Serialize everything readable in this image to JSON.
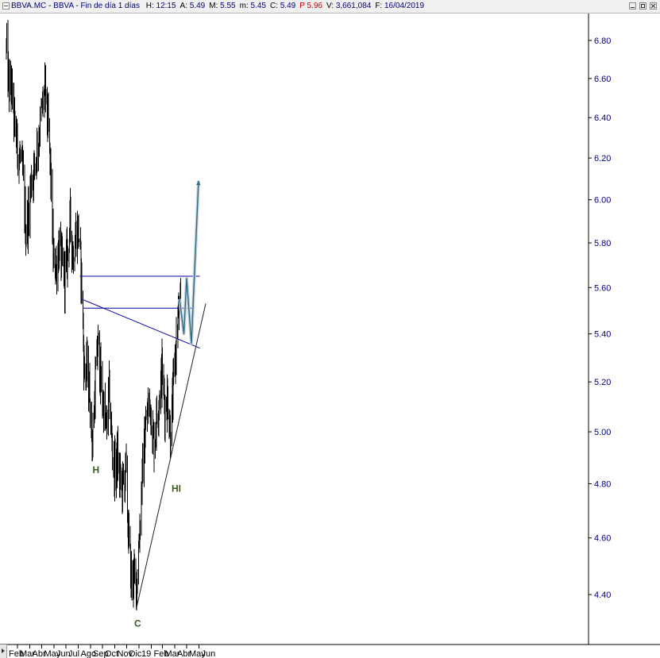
{
  "window": {
    "symbol": "BBVA.MC",
    "name": "BBVA",
    "period": "Fin de día 1 días",
    "stats": [
      {
        "label": "H:",
        "value": "12:15",
        "cls": "v"
      },
      {
        "label": "A:",
        "value": "5.49",
        "cls": "v"
      },
      {
        "label": "M:",
        "value": "5.55",
        "cls": "v"
      },
      {
        "label": "m:",
        "value": "5.45",
        "cls": "v"
      },
      {
        "label": "C:",
        "value": "5.49",
        "cls": "v"
      },
      {
        "label": "P",
        "value": "5.96",
        "cls": "high"
      },
      {
        "label": "V:",
        "value": "3,661,084",
        "cls": "v"
      },
      {
        "label": "F:",
        "value": "16/04/2019",
        "cls": "v"
      }
    ]
  },
  "chart_data": {
    "type": "candlestick",
    "ylim": [
      4.24,
      6.93
    ],
    "y_ticks": [
      "4.40",
      "4.60",
      "4.80",
      "5.00",
      "5.20",
      "5.40",
      "5.60",
      "5.80",
      "6.00",
      "6.20",
      "6.40",
      "6.60",
      "6.80"
    ],
    "x_labels": [
      "Feb",
      "Mar",
      "Abr",
      "May",
      "Jun",
      "Jul",
      "Ago",
      "Sep",
      "Oct",
      "Nov",
      "Dic",
      "19",
      "Feb",
      "Mar",
      "Abr",
      "May",
      "Jun"
    ],
    "series_color": "#000000",
    "price_path": [
      [
        "2018-02-01",
        6.75
      ],
      [
        "2018-02-08",
        6.55
      ],
      [
        "2018-02-15",
        6.55
      ],
      [
        "2018-02-22",
        6.35
      ],
      [
        "2018-03-01",
        6.25
      ],
      [
        "2018-03-08",
        6.2
      ],
      [
        "2018-03-15",
        6.1
      ],
      [
        "2018-03-22",
        5.85
      ],
      [
        "2018-03-29",
        5.95
      ],
      [
        "2018-04-05",
        6.1
      ],
      [
        "2018-04-12",
        6.15
      ],
      [
        "2018-04-19",
        6.25
      ],
      [
        "2018-04-26",
        6.35
      ],
      [
        "2018-05-03",
        6.45
      ],
      [
        "2018-05-10",
        6.55
      ],
      [
        "2018-05-17",
        6.35
      ],
      [
        "2018-05-24",
        6.1
      ],
      [
        "2018-05-31",
        5.7
      ],
      [
        "2018-06-07",
        5.7
      ],
      [
        "2018-06-14",
        5.8
      ],
      [
        "2018-06-21",
        5.7
      ],
      [
        "2018-06-28",
        5.65
      ],
      [
        "2018-07-05",
        5.75
      ],
      [
        "2018-07-12",
        5.9
      ],
      [
        "2018-07-19",
        5.75
      ],
      [
        "2018-07-26",
        5.85
      ],
      [
        "2018-08-02",
        5.85
      ],
      [
        "2018-08-09",
        5.65
      ],
      [
        "2018-08-16",
        5.25
      ],
      [
        "2018-08-23",
        5.25
      ],
      [
        "2018-08-30",
        5.15
      ],
      [
        "2018-09-06",
        4.95
      ],
      [
        "2018-09-13",
        5.2
      ],
      [
        "2018-09-20",
        5.35
      ],
      [
        "2018-09-27",
        5.2
      ],
      [
        "2018-10-04",
        5.1
      ],
      [
        "2018-10-11",
        5.0
      ],
      [
        "2018-10-18",
        5.15
      ],
      [
        "2018-10-25",
        4.95
      ],
      [
        "2018-11-01",
        4.85
      ],
      [
        "2018-11-08",
        4.9
      ],
      [
        "2018-11-15",
        4.8
      ],
      [
        "2018-11-22",
        4.8
      ],
      [
        "2018-11-29",
        4.85
      ],
      [
        "2018-12-06",
        4.6
      ],
      [
        "2018-12-13",
        4.45
      ],
      [
        "2018-12-20",
        4.45
      ],
      [
        "2018-12-27",
        4.45
      ],
      [
        "2019-01-03",
        4.65
      ],
      [
        "2019-01-10",
        4.85
      ],
      [
        "2019-01-17",
        5.0
      ],
      [
        "2019-01-24",
        5.1
      ],
      [
        "2019-01-31",
        5.1
      ],
      [
        "2019-02-07",
        4.95
      ],
      [
        "2019-02-14",
        5.05
      ],
      [
        "2019-02-21",
        5.15
      ],
      [
        "2019-02-28",
        5.25
      ],
      [
        "2019-03-07",
        5.1
      ],
      [
        "2019-03-14",
        5.15
      ],
      [
        "2019-03-21",
        5.0
      ],
      [
        "2019-03-28",
        5.15
      ],
      [
        "2019-04-04",
        5.35
      ],
      [
        "2019-04-11",
        5.5
      ],
      [
        "2019-04-16",
        5.49
      ]
    ],
    "lines": [
      {
        "role": "resistance",
        "color": "#0000aa",
        "points": [
          [
            "2018-08-05",
            5.65
          ],
          [
            "2019-06-03",
            5.65
          ]
        ]
      },
      {
        "role": "neckline-horizontal",
        "color": "#0000aa",
        "points": [
          [
            "2018-08-13",
            5.51
          ],
          [
            "2019-05-21",
            5.51
          ]
        ]
      },
      {
        "role": "neckline-down",
        "color": "#0000aa",
        "points": [
          [
            "2018-08-09",
            5.55
          ],
          [
            "2019-06-03",
            5.34
          ]
        ]
      },
      {
        "role": "rising-trendline",
        "color": "#222222",
        "points": [
          [
            "2018-12-25",
            4.35
          ],
          [
            "2019-06-18",
            5.53
          ]
        ]
      }
    ],
    "projection": {
      "color": "#2d6b8a",
      "points": [
        [
          "2019-04-13",
          5.55
        ],
        [
          "2019-04-24",
          5.4
        ],
        [
          "2019-05-01",
          5.64
        ],
        [
          "2019-05-13",
          5.36
        ],
        [
          "2019-05-31",
          6.09
        ]
      ]
    },
    "annotations": [
      {
        "text": "H",
        "x": "2018-09-06",
        "y": 4.84,
        "color": "#3a5a1e"
      },
      {
        "text": "C",
        "x": "2018-12-20",
        "y": 4.29,
        "color": "#3a5a1e"
      },
      {
        "text": "HI",
        "x": "2019-03-24",
        "y": 4.77,
        "color": "#3a5a1e"
      }
    ]
  }
}
